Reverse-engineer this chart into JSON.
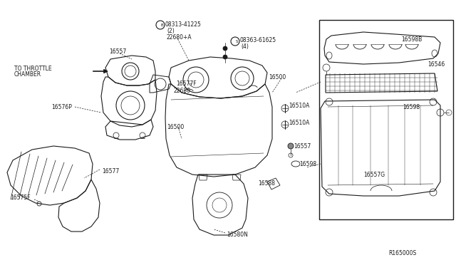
{
  "bg_color": "#ffffff",
  "line_color": "#1a1a1a",
  "ref_code": "R165000S",
  "labels": {
    "TO_THROTTLE": [
      "TO THROTTLE",
      "CHAMBER"
    ],
    "16557_a": "16557",
    "16576P": "16576P",
    "08313": "08313-41225",
    "B": "B",
    "qty2": "(2)",
    "22680A": "22680+A",
    "08363": "08363-61625",
    "S": "S",
    "qty4": "(4)",
    "16577F": "16577F",
    "22680": "22680",
    "16500_a": "16500",
    "16577": "16577",
    "16575F": "16575F",
    "16580N": "16580N",
    "16500_b": "16500",
    "16510A_a": "16510A",
    "16510A_b": "16510A",
    "16557_b": "16557",
    "16598_a": "16598",
    "16588": "16588",
    "16598B": "16598B",
    "16546": "16546",
    "16598_b": "16598",
    "16557G": "16557G"
  }
}
